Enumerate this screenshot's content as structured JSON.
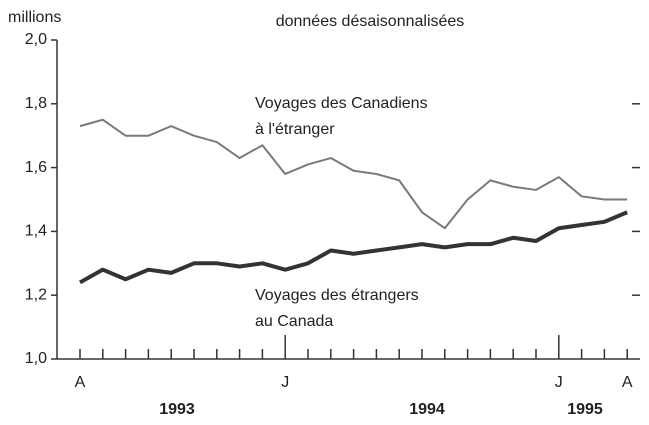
{
  "chart_data": {
    "type": "line",
    "unit_label": "millions",
    "subtitle": "données désaisonnalisées",
    "categories": [
      "A",
      null,
      null,
      null,
      null,
      null,
      null,
      null,
      null,
      "J",
      null,
      null,
      null,
      null,
      null,
      null,
      null,
      null,
      null,
      null,
      null,
      "J",
      null,
      null,
      "A"
    ],
    "year_labels": [
      "1993",
      "1994",
      "1995"
    ],
    "ylim": [
      1.0,
      2.0
    ],
    "yticks": [
      {
        "value": 1.0,
        "label": "1,0"
      },
      {
        "value": 1.2,
        "label": "1,2"
      },
      {
        "value": 1.4,
        "label": "1,4"
      },
      {
        "value": 1.6,
        "label": "1,6"
      },
      {
        "value": 1.8,
        "label": "1,8"
      },
      {
        "value": 2.0,
        "label": "2,0"
      }
    ],
    "series": [
      {
        "label": [
          "Voyages des Canadiens",
          "à l'étranger"
        ],
        "color": "#7a7a7a",
        "values": [
          1.73,
          1.75,
          1.7,
          1.7,
          1.73,
          1.7,
          1.68,
          1.63,
          1.67,
          1.58,
          1.61,
          1.63,
          1.59,
          1.58,
          1.56,
          1.46,
          1.41,
          1.5,
          1.56,
          1.54,
          1.53,
          1.57,
          1.51,
          1.5,
          1.5
        ]
      },
      {
        "label": [
          "Voyages des étrangers",
          "au Canada"
        ],
        "color": "#333333",
        "values": [
          1.24,
          1.28,
          1.25,
          1.28,
          1.27,
          1.3,
          1.3,
          1.29,
          1.3,
          1.28,
          1.3,
          1.34,
          1.33,
          1.34,
          1.35,
          1.36,
          1.35,
          1.36,
          1.36,
          1.38,
          1.37,
          1.41,
          1.42,
          1.43,
          1.46
        ]
      }
    ]
  }
}
